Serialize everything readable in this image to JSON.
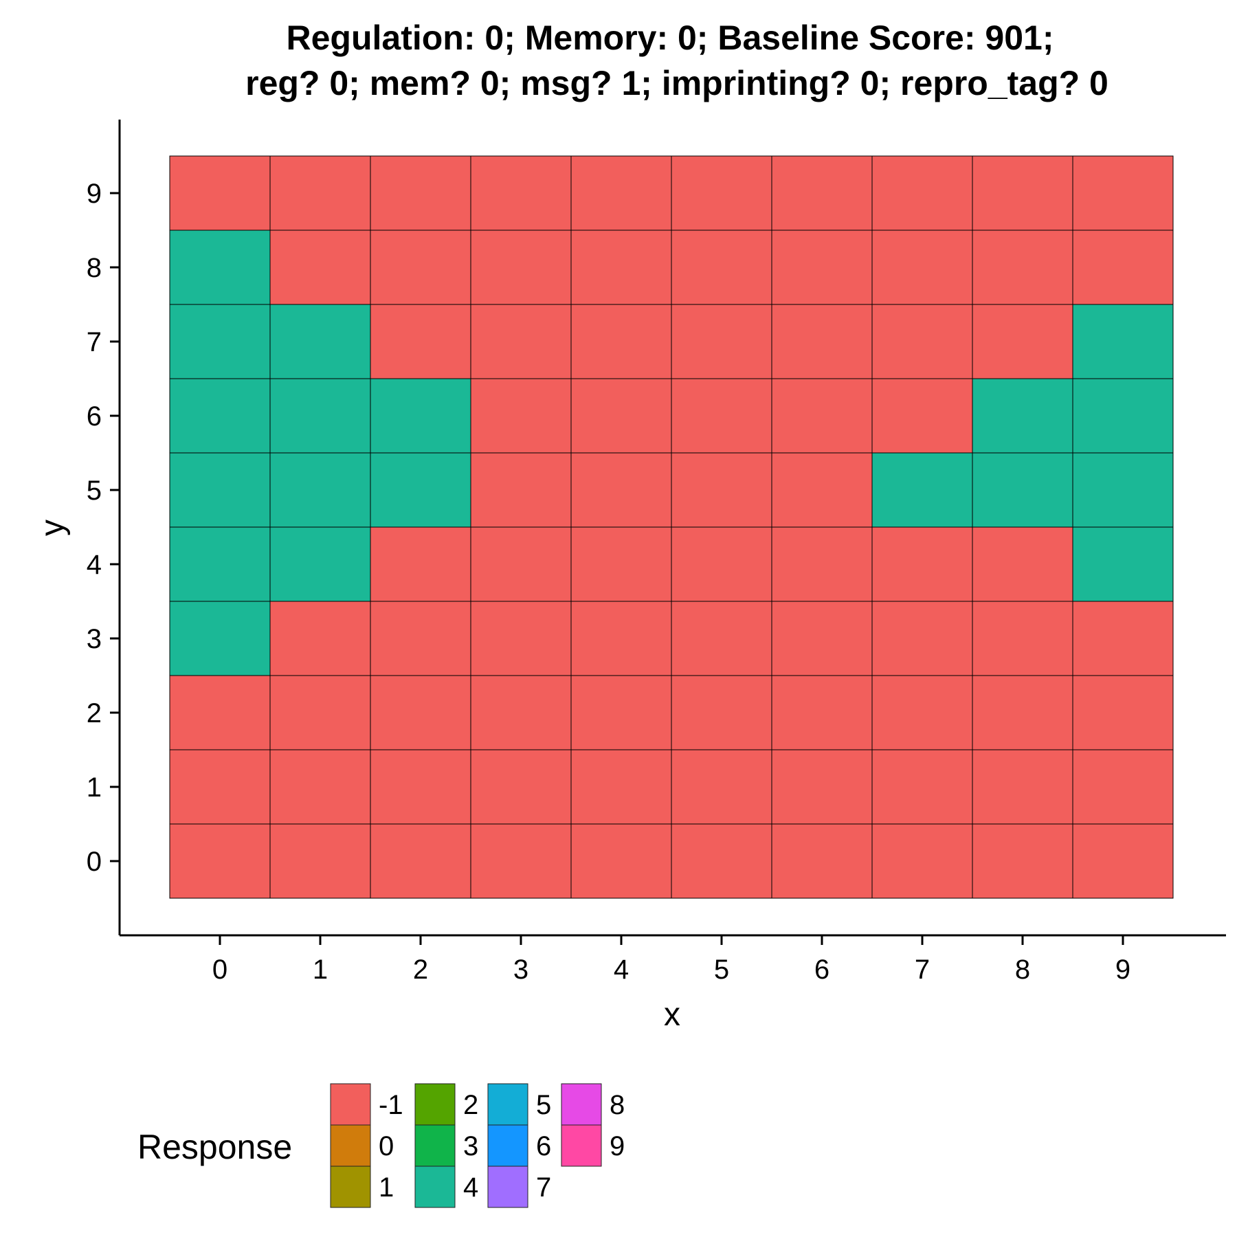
{
  "chart_data": {
    "type": "heatmap",
    "title_lines": [
      "Regulation: 0; Memory: 0; Baseline Score: 901;",
      "reg? 0; mem? 0; msg? 1; imprinting? 0; repro_tag? 0"
    ],
    "xlabel": "x",
    "ylabel": "y",
    "x_ticks": [
      0,
      1,
      2,
      3,
      4,
      5,
      6,
      7,
      8,
      9
    ],
    "y_ticks": [
      0,
      1,
      2,
      3,
      4,
      5,
      6,
      7,
      8,
      9
    ],
    "xlim": [
      -1,
      10
    ],
    "ylim": [
      -1,
      10
    ],
    "grid": false,
    "legend": {
      "title": "Response",
      "position": "bottom",
      "entries": [
        {
          "label": "-1",
          "color": "#F25F5C"
        },
        {
          "label": "0",
          "color": "#D07C0C"
        },
        {
          "label": "1",
          "color": "#A09300"
        },
        {
          "label": "2",
          "color": "#54A400"
        },
        {
          "label": "3",
          "color": "#10B44A"
        },
        {
          "label": "4",
          "color": "#1BB896"
        },
        {
          "label": "5",
          "color": "#13ADD6"
        },
        {
          "label": "6",
          "color": "#1496FF"
        },
        {
          "label": "7",
          "color": "#A06EFF"
        },
        {
          "label": "8",
          "color": "#E64AE6"
        },
        {
          "label": "9",
          "color": "#FF48A4"
        }
      ]
    },
    "rows_y_descending": [
      9,
      8,
      7,
      6,
      5,
      4,
      3,
      2,
      1,
      0
    ],
    "grid_values": [
      [
        -1,
        -1,
        -1,
        -1,
        -1,
        -1,
        -1,
        -1,
        -1,
        -1
      ],
      [
        4,
        -1,
        -1,
        -1,
        -1,
        -1,
        -1,
        -1,
        -1,
        -1
      ],
      [
        4,
        4,
        -1,
        -1,
        -1,
        -1,
        -1,
        -1,
        -1,
        4
      ],
      [
        4,
        4,
        4,
        -1,
        -1,
        -1,
        -1,
        -1,
        4,
        4
      ],
      [
        4,
        4,
        4,
        -1,
        -1,
        -1,
        -1,
        4,
        4,
        4
      ],
      [
        4,
        4,
        -1,
        -1,
        -1,
        -1,
        -1,
        -1,
        -1,
        4
      ],
      [
        4,
        -1,
        -1,
        -1,
        -1,
        -1,
        -1,
        -1,
        -1,
        -1
      ],
      [
        -1,
        -1,
        -1,
        -1,
        -1,
        -1,
        -1,
        -1,
        -1,
        -1
      ],
      [
        -1,
        -1,
        -1,
        -1,
        -1,
        -1,
        -1,
        -1,
        -1,
        -1
      ],
      [
        -1,
        -1,
        -1,
        -1,
        -1,
        -1,
        -1,
        -1,
        -1,
        -1
      ]
    ]
  }
}
